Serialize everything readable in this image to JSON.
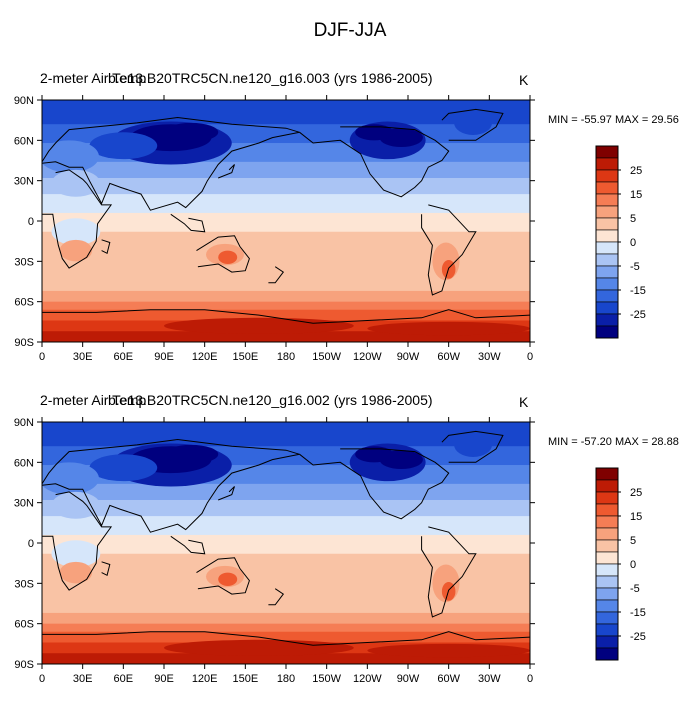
{
  "title": "DJF-JJA",
  "colors": {
    "levels": [
      "#00007f",
      "#0a1fa8",
      "#1846cc",
      "#3366dd",
      "#5586e8",
      "#7ea4ef",
      "#aac4f4",
      "#d6e6fa",
      "#fde5d4",
      "#f9c3a5",
      "#f7a27d",
      "#f57d55",
      "#ee5a30",
      "#dd3714",
      "#bd1b05",
      "#7f0000"
    ],
    "land_outline": "#000000"
  },
  "colorbar": {
    "labels": [
      "25",
      "15",
      "5",
      "0",
      "-5",
      "-15",
      "-25"
    ]
  },
  "axes": {
    "lat_labels": [
      "90N",
      "60N",
      "30N",
      "0",
      "30S",
      "60S",
      "90S"
    ],
    "lon_labels": [
      "0",
      "30E",
      "60E",
      "90E",
      "120E",
      "150E",
      "180",
      "150W",
      "120W",
      "90W",
      "60W",
      "30W",
      "0"
    ]
  },
  "panels": [
    {
      "left_label": "2-meter Air Temp",
      "center_label": "b.e13.B20TRC5CN.ne120_g16.003 (yrs 1986-2005)",
      "units": "K",
      "minmax": "MIN = -55.97 MAX = 29.56",
      "min": -55.97,
      "max": 29.56
    },
    {
      "left_label": "2-meter Air Temp",
      "center_label": "b.e13.B20TRC5CN.ne120_g16.002 (yrs 1986-2005)",
      "units": "K",
      "minmax": "MIN = -57.20 MAX = 28.88",
      "min": -57.2,
      "max": 28.88
    }
  ]
}
